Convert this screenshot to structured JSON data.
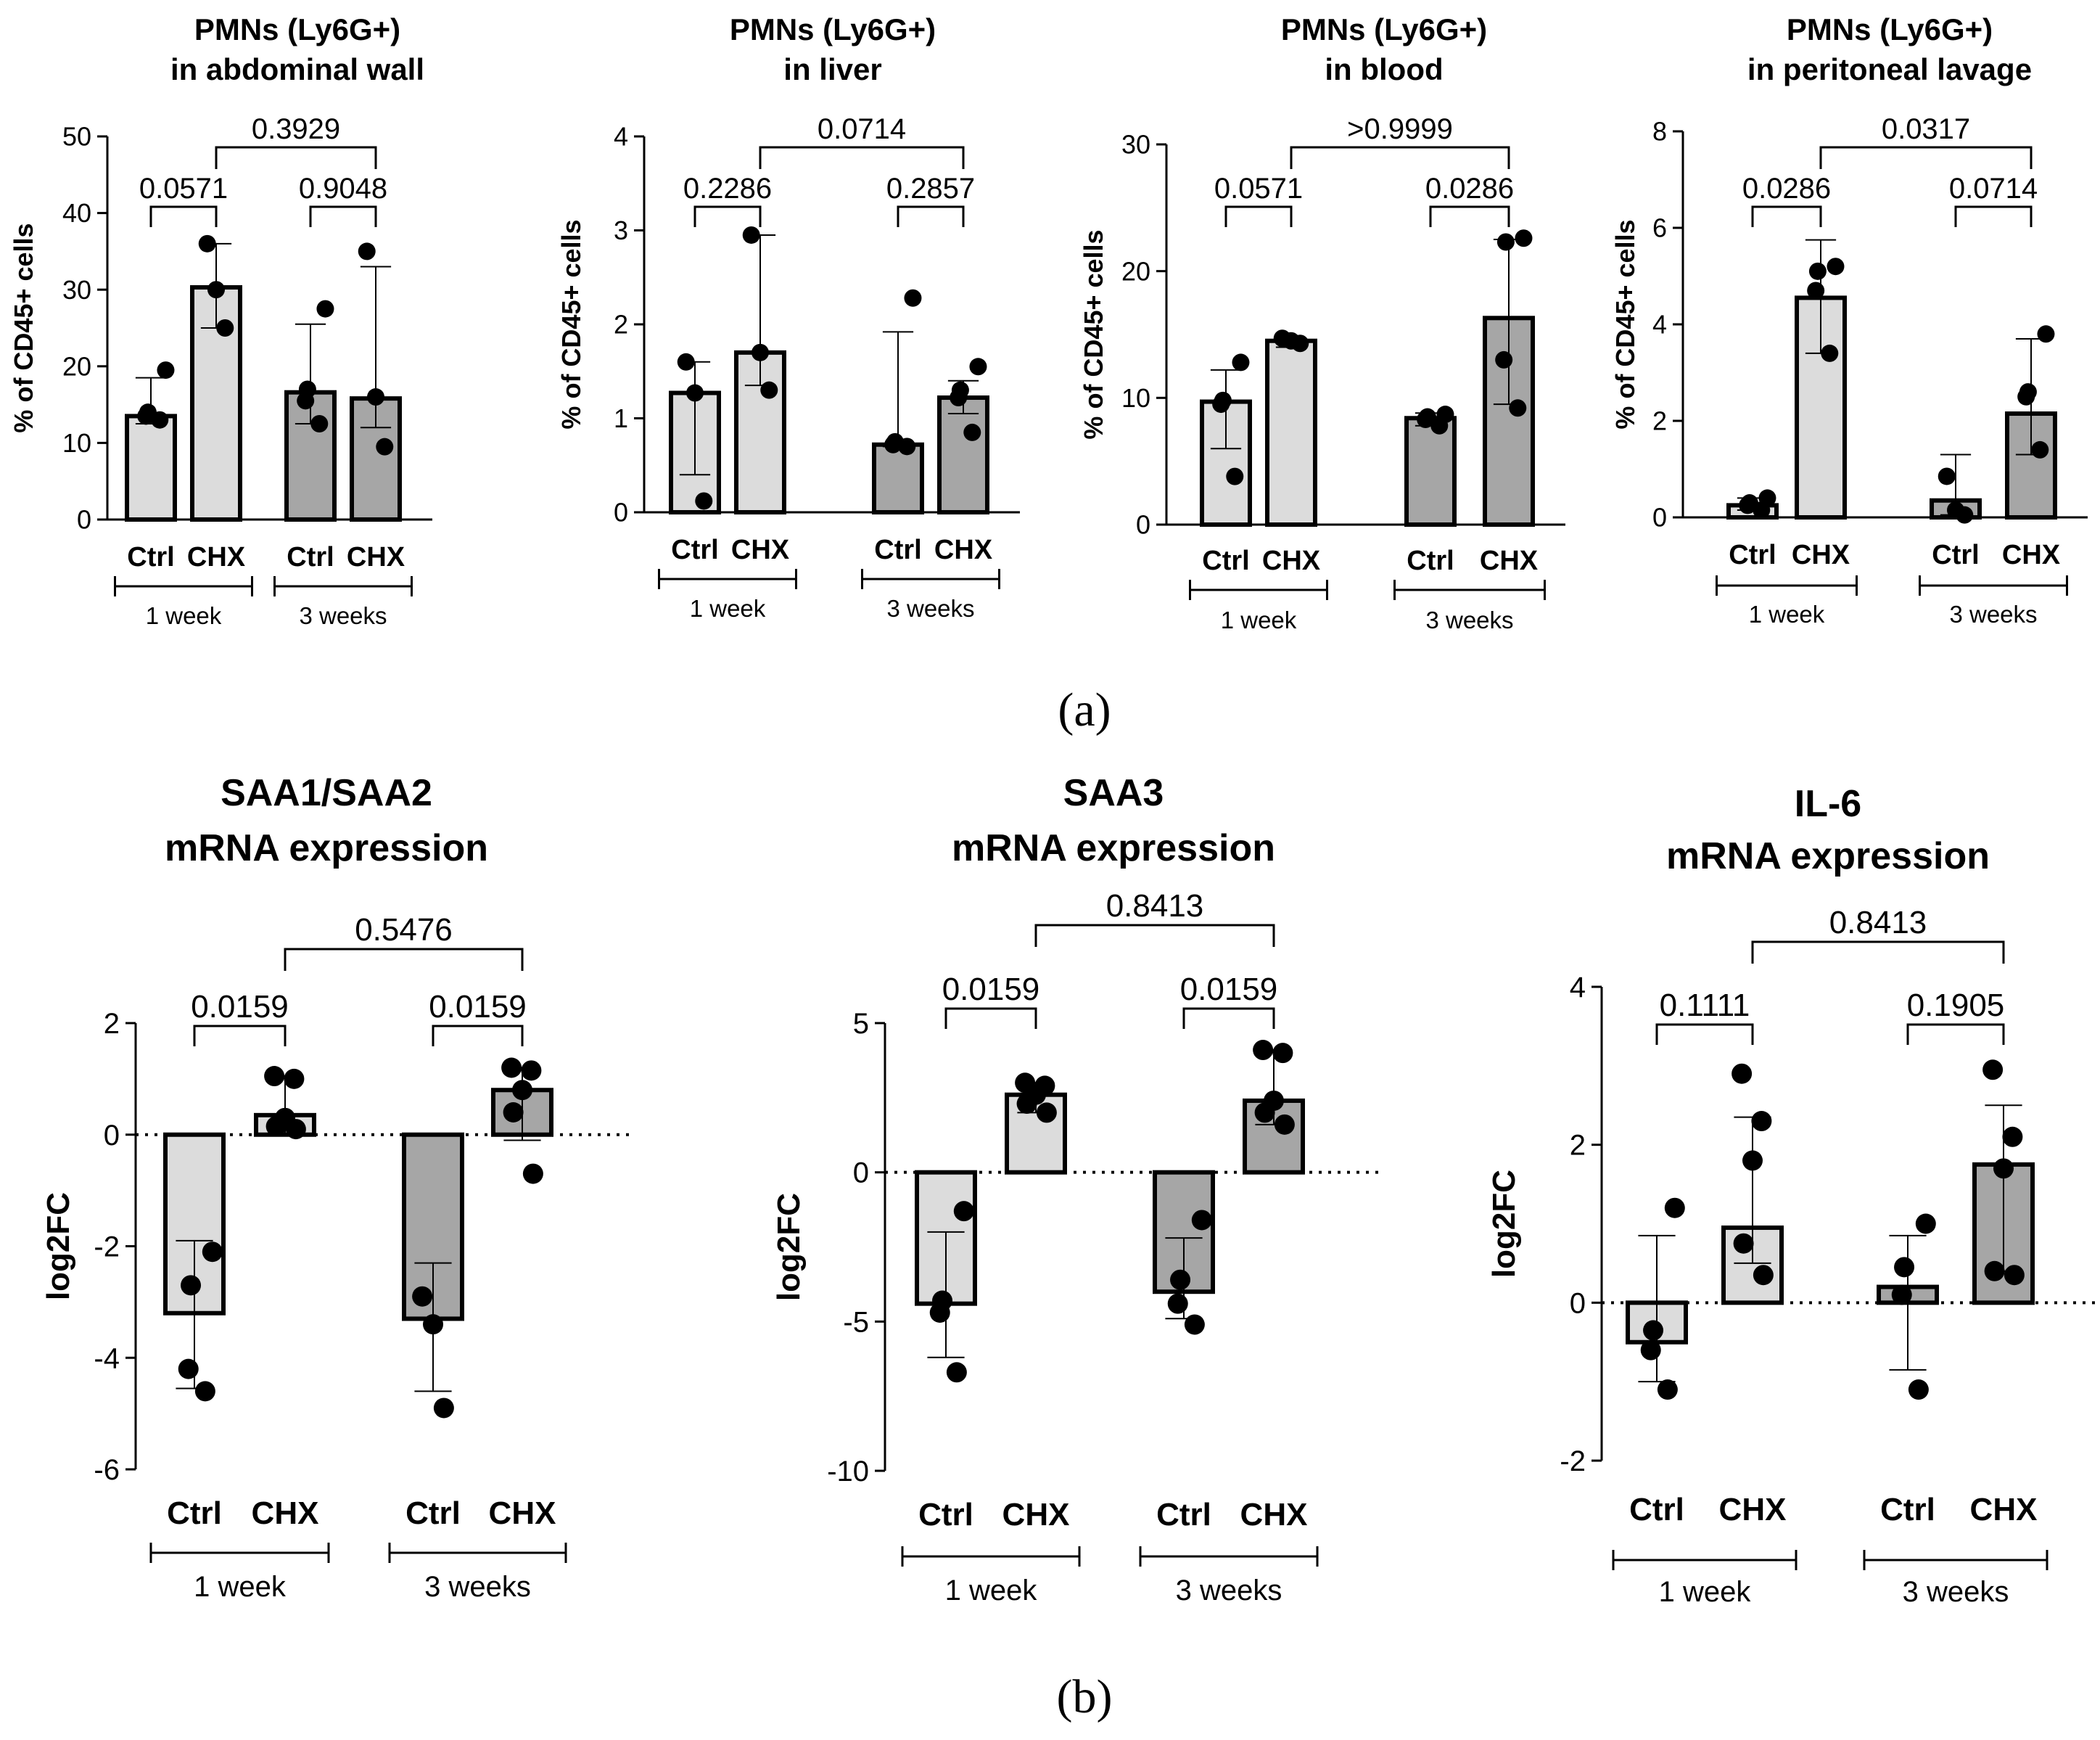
{
  "figure": {
    "panel_labels": [
      "(a)",
      "(b)"
    ]
  },
  "colors": {
    "week1_bar": "#dcdcdc",
    "week3_bar": "#a6a6a6",
    "bar_outline": "#000000",
    "point": "#000000"
  },
  "chart_data": [
    {
      "type": "bar",
      "panel": "a",
      "title_lines": [
        "PMNs (Ly6G+)",
        "in abdominal wall"
      ],
      "ylabel": "% of CD45+ cells",
      "ylim": [
        0,
        50
      ],
      "yticks": [
        0,
        10,
        20,
        30,
        40,
        50
      ],
      "zero_line": false,
      "categories": [
        "Ctrl",
        "CHX",
        "Ctrl",
        "CHX"
      ],
      "group_labels": [
        "1 week",
        "3 weeks"
      ],
      "bars": [
        {
          "group": "1 week",
          "label": "Ctrl",
          "value": 13.5,
          "err_low": 12.5,
          "err_high": 18.5,
          "points": [
            13,
            13.5,
            14,
            19.5
          ]
        },
        {
          "group": "1 week",
          "label": "CHX",
          "value": 30.3,
          "err_low": 25,
          "err_high": 36,
          "points": [
            25,
            30,
            36
          ]
        },
        {
          "group": "3 weeks",
          "label": "Ctrl",
          "value": 16.6,
          "err_low": 12.5,
          "err_high": 25.5,
          "points": [
            12.5,
            15.5,
            17,
            27.5
          ]
        },
        {
          "group": "3 weeks",
          "label": "CHX",
          "value": 15.8,
          "err_low": 12,
          "err_high": 33,
          "points": [
            9.5,
            16,
            35
          ]
        }
      ],
      "comparisons": [
        {
          "from": 0,
          "to": 1,
          "p": "0.0571",
          "level": 1
        },
        {
          "from": 2,
          "to": 3,
          "p": "0.9048",
          "level": 1
        },
        {
          "from": 1,
          "to": 3,
          "p": "0.3929",
          "level": 2
        }
      ]
    },
    {
      "type": "bar",
      "panel": "a",
      "title_lines": [
        "PMNs (Ly6G+)",
        "in liver"
      ],
      "ylabel": "% of CD45+ cells",
      "ylim": [
        0,
        4
      ],
      "yticks": [
        0,
        1,
        2,
        3,
        4
      ],
      "zero_line": false,
      "categories": [
        "Ctrl",
        "CHX",
        "Ctrl",
        "CHX"
      ],
      "group_labels": [
        "1 week",
        "3 weeks"
      ],
      "bars": [
        {
          "group": "1 week",
          "label": "Ctrl",
          "value": 1.27,
          "err_low": 0.4,
          "err_high": 1.6,
          "points": [
            0.12,
            1.27,
            1.6
          ]
        },
        {
          "group": "1 week",
          "label": "CHX",
          "value": 1.7,
          "err_low": 1.35,
          "err_high": 2.95,
          "points": [
            1.3,
            1.7,
            2.95
          ]
        },
        {
          "group": "3 weeks",
          "label": "Ctrl",
          "value": 0.72,
          "err_low": 0.7,
          "err_high": 1.92,
          "points": [
            0.7,
            0.72,
            0.75,
            2.28
          ]
        },
        {
          "group": "3 weeks",
          "label": "CHX",
          "value": 1.22,
          "err_low": 1.05,
          "err_high": 1.4,
          "points": [
            0.85,
            1.22,
            1.3,
            1.55
          ]
        }
      ],
      "comparisons": [
        {
          "from": 0,
          "to": 1,
          "p": "0.2286",
          "level": 1
        },
        {
          "from": 2,
          "to": 3,
          "p": "0.2857",
          "level": 1
        },
        {
          "from": 1,
          "to": 3,
          "p": "0.0714",
          "level": 2
        }
      ]
    },
    {
      "type": "bar",
      "panel": "a",
      "title_lines": [
        "PMNs (Ly6G+)",
        "in blood"
      ],
      "ylabel": "% of CD45+ cells",
      "ylim": [
        0,
        30
      ],
      "yticks": [
        0,
        10,
        20,
        30
      ],
      "zero_line": false,
      "categories": [
        "Ctrl",
        "CHX",
        "Ctrl",
        "CHX"
      ],
      "group_labels": [
        "1 week",
        "3 weeks"
      ],
      "bars": [
        {
          "group": "1 week",
          "label": "Ctrl",
          "value": 9.7,
          "err_low": 6,
          "err_high": 12.2,
          "points": [
            3.8,
            9.5,
            9.8,
            12.8
          ]
        },
        {
          "group": "1 week",
          "label": "CHX",
          "value": 14.5,
          "err_low": 14,
          "err_high": 14.6,
          "points": [
            14.3,
            14.5,
            14.7
          ]
        },
        {
          "group": "3 weeks",
          "label": "Ctrl",
          "value": 8.4,
          "err_low": 7.8,
          "err_high": 8.8,
          "points": [
            7.8,
            8.3,
            8.5,
            8.7
          ]
        },
        {
          "group": "3 weeks",
          "label": "CHX",
          "value": 16.3,
          "err_low": 9.5,
          "err_high": 22.5,
          "points": [
            9.2,
            13,
            22.3,
            22.6
          ]
        }
      ],
      "comparisons": [
        {
          "from": 0,
          "to": 1,
          "p": "0.0571",
          "level": 1
        },
        {
          "from": 2,
          "to": 3,
          "p": "0.0286",
          "level": 1
        },
        {
          "from": 1,
          "to": 3,
          "p": ">0.9999",
          "level": 2
        }
      ]
    },
    {
      "type": "bar",
      "panel": "a",
      "title_lines": [
        "PMNs (Ly6G+)",
        "in peritoneal lavage"
      ],
      "ylabel": "% of CD45+ cells",
      "ylim": [
        0,
        8
      ],
      "yticks": [
        0,
        2,
        4,
        6,
        8
      ],
      "zero_line": false,
      "categories": [
        "Ctrl",
        "CHX",
        "Ctrl",
        "CHX"
      ],
      "group_labels": [
        "1 week",
        "3 weeks"
      ],
      "bars": [
        {
          "group": "1 week",
          "label": "Ctrl",
          "value": 0.25,
          "err_low": 0.15,
          "err_high": 0.4,
          "points": [
            0.15,
            0.25,
            0.3,
            0.4
          ]
        },
        {
          "group": "1 week",
          "label": "CHX",
          "value": 4.55,
          "err_low": 3.4,
          "err_high": 5.75,
          "points": [
            3.4,
            4.7,
            5.1,
            5.2
          ]
        },
        {
          "group": "3 weeks",
          "label": "Ctrl",
          "value": 0.35,
          "err_low": 0.05,
          "err_high": 1.3,
          "points": [
            0.05,
            0.15,
            0.85
          ]
        },
        {
          "group": "3 weeks",
          "label": "CHX",
          "value": 2.15,
          "err_low": 1.3,
          "err_high": 3.7,
          "points": [
            1.4,
            2.5,
            2.6,
            3.8
          ]
        }
      ],
      "comparisons": [
        {
          "from": 0,
          "to": 1,
          "p": "0.0286",
          "level": 1
        },
        {
          "from": 2,
          "to": 3,
          "p": "0.0714",
          "level": 1
        },
        {
          "from": 1,
          "to": 3,
          "p": "0.0317",
          "level": 2
        }
      ]
    },
    {
      "type": "bar",
      "panel": "b",
      "title_lines": [
        "SAA1/SAA2",
        "mRNA expression"
      ],
      "ylabel": "log2FC",
      "ylim": [
        -6,
        2
      ],
      "yticks": [
        -6,
        -4,
        -2,
        0,
        2
      ],
      "zero_line": true,
      "categories": [
        "Ctrl",
        "CHX",
        "Ctrl",
        "CHX"
      ],
      "group_labels": [
        "1 week",
        "3 weeks"
      ],
      "bars": [
        {
          "group": "1 week",
          "label": "Ctrl",
          "value": -3.2,
          "err_low": -4.55,
          "err_high": -1.9,
          "points": [
            -4.6,
            -4.2,
            -2.7,
            -2.1
          ]
        },
        {
          "group": "1 week",
          "label": "CHX",
          "value": 0.35,
          "err_low": 0.0,
          "err_high": 1.05,
          "points": [
            0.1,
            0.15,
            0.3,
            1.0,
            1.05
          ]
        },
        {
          "group": "3 weeks",
          "label": "Ctrl",
          "value": -3.3,
          "err_low": -4.6,
          "err_high": -2.3,
          "points": [
            -4.9,
            -3.4,
            -2.9
          ]
        },
        {
          "group": "3 weeks",
          "label": "CHX",
          "value": 0.8,
          "err_low": -0.1,
          "err_high": 1.2,
          "points": [
            -0.7,
            0.4,
            0.8,
            1.15,
            1.2
          ]
        }
      ],
      "comparisons": [
        {
          "from": 0,
          "to": 1,
          "p": "0.0159",
          "level": 1
        },
        {
          "from": 2,
          "to": 3,
          "p": "0.0159",
          "level": 1
        },
        {
          "from": 1,
          "to": 3,
          "p": "0.5476",
          "level": 2
        }
      ]
    },
    {
      "type": "bar",
      "panel": "b",
      "title_lines": [
        "SAA3",
        "mRNA expression"
      ],
      "ylabel": "log2FC",
      "ylim": [
        -10,
        5
      ],
      "yticks": [
        -10,
        -5,
        0,
        5
      ],
      "zero_line": true,
      "categories": [
        "Ctrl",
        "CHX",
        "Ctrl",
        "CHX"
      ],
      "group_labels": [
        "1 week",
        "3 weeks"
      ],
      "bars": [
        {
          "group": "1 week",
          "label": "Ctrl",
          "value": -4.4,
          "err_low": -6.2,
          "err_high": -2.0,
          "points": [
            -6.7,
            -4.7,
            -4.3,
            -1.3
          ]
        },
        {
          "group": "1 week",
          "label": "CHX",
          "value": 2.6,
          "err_low": 2.0,
          "err_high": 3.0,
          "points": [
            2.0,
            2.3,
            2.6,
            2.9,
            3.0
          ]
        },
        {
          "group": "3 weeks",
          "label": "Ctrl",
          "value": -4.0,
          "err_low": -4.9,
          "err_high": -2.2,
          "points": [
            -5.1,
            -4.4,
            -3.6,
            -1.6
          ]
        },
        {
          "group": "3 weeks",
          "label": "CHX",
          "value": 2.4,
          "err_low": 1.6,
          "err_high": 4.1,
          "points": [
            1.6,
            2.0,
            2.4,
            4.0,
            4.1
          ]
        }
      ],
      "comparisons": [
        {
          "from": 0,
          "to": 1,
          "p": "0.0159",
          "level": 1
        },
        {
          "from": 2,
          "to": 3,
          "p": "0.0159",
          "level": 1
        },
        {
          "from": 1,
          "to": 3,
          "p": "0.8413",
          "level": 2
        }
      ]
    },
    {
      "type": "bar",
      "panel": "b",
      "title_lines": [
        "IL-6",
        "mRNA expression"
      ],
      "ylabel": "log2FC",
      "ylim": [
        -2,
        4
      ],
      "yticks": [
        -2,
        0,
        2,
        4
      ],
      "zero_line": true,
      "categories": [
        "Ctrl",
        "CHX",
        "Ctrl",
        "CHX"
      ],
      "group_labels": [
        "1 week",
        "3 weeks"
      ],
      "bars": [
        {
          "group": "1 week",
          "label": "Ctrl",
          "value": -0.5,
          "err_low": -1.0,
          "err_high": 0.85,
          "points": [
            -1.1,
            -0.6,
            -0.35,
            1.2
          ]
        },
        {
          "group": "1 week",
          "label": "CHX",
          "value": 0.95,
          "err_low": 0.5,
          "err_high": 2.35,
          "points": [
            0.35,
            0.75,
            1.8,
            2.3,
            2.9
          ]
        },
        {
          "group": "3 weeks",
          "label": "Ctrl",
          "value": 0.2,
          "err_low": -0.85,
          "err_high": 0.85,
          "points": [
            -1.1,
            0.1,
            0.45,
            1.0
          ]
        },
        {
          "group": "3 weeks",
          "label": "CHX",
          "value": 1.75,
          "err_low": 0.4,
          "err_high": 2.5,
          "points": [
            0.35,
            0.4,
            1.7,
            2.1,
            2.95
          ]
        }
      ],
      "comparisons": [
        {
          "from": 0,
          "to": 1,
          "p": "0.1111",
          "level": 1
        },
        {
          "from": 2,
          "to": 3,
          "p": "0.1905",
          "level": 1
        },
        {
          "from": 1,
          "to": 3,
          "p": "0.8413",
          "level": 2
        }
      ]
    }
  ]
}
